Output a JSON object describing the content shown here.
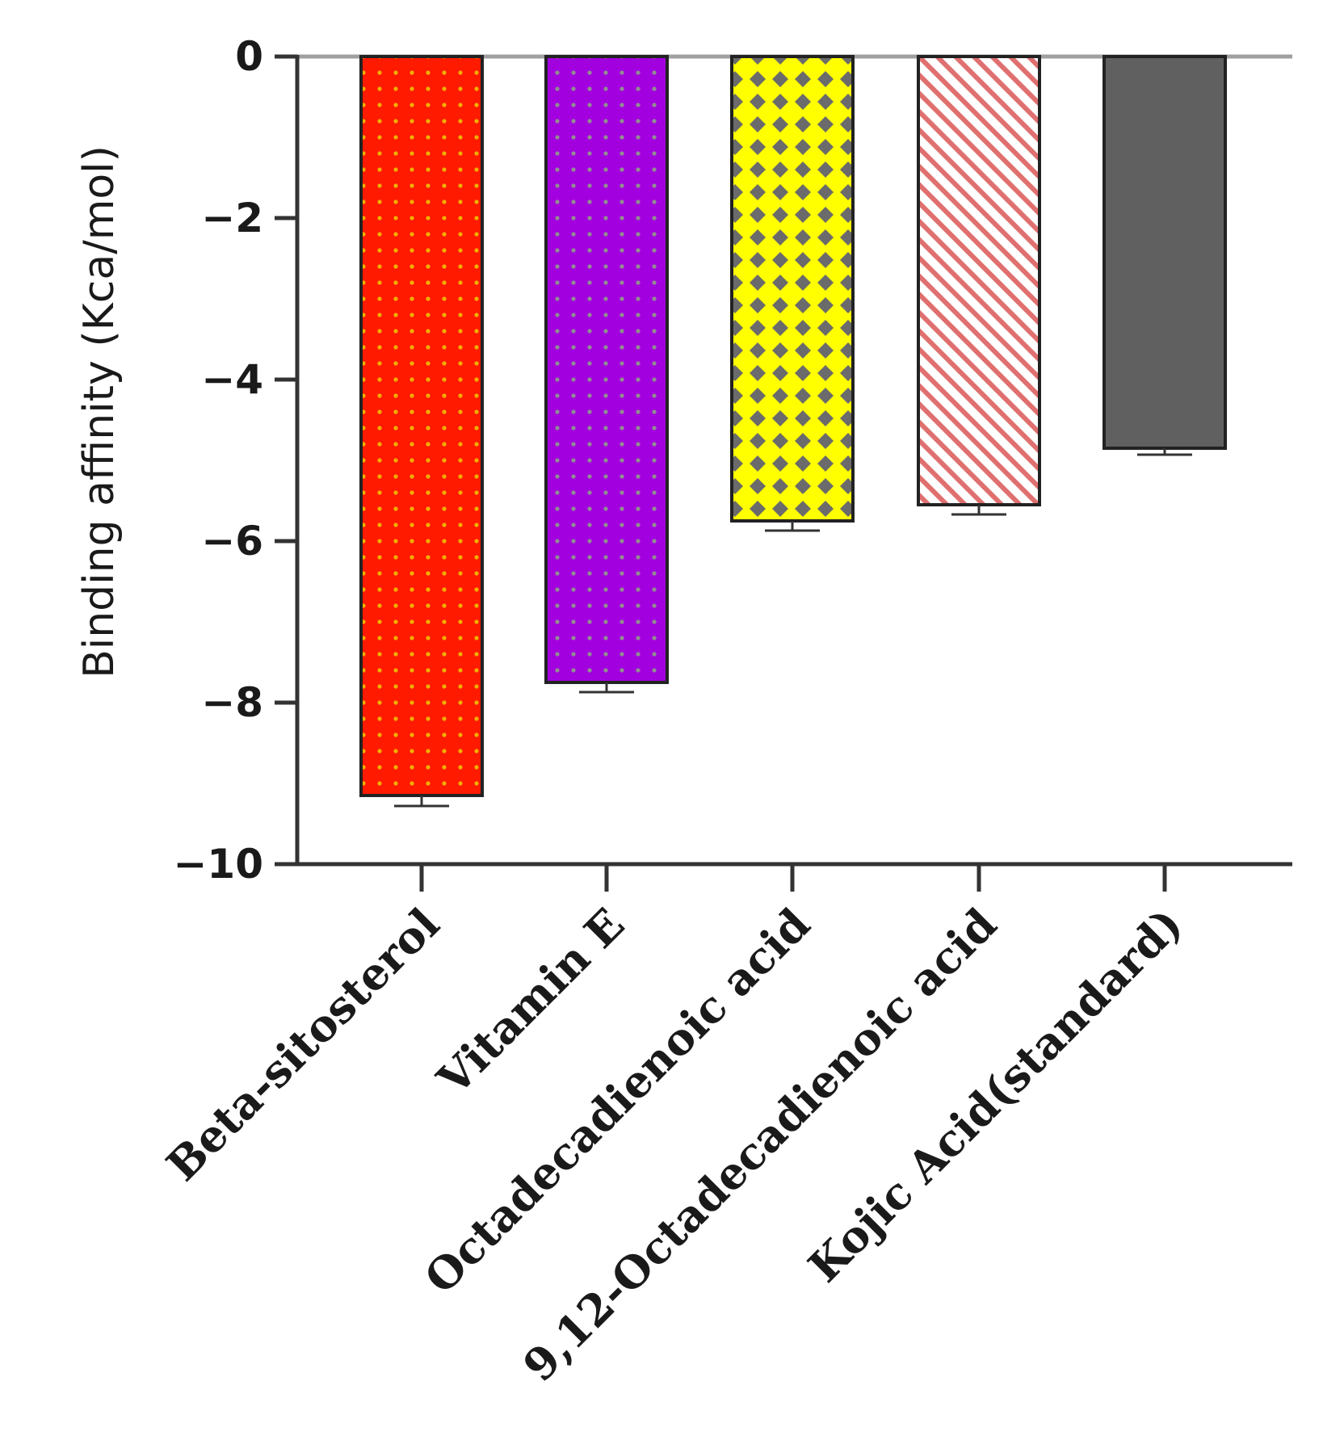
{
  "chart_data": {
    "type": "bar",
    "title": "",
    "xlabel": "",
    "ylabel": "Binding affinity (Kca/mol)",
    "ylim": [
      -10,
      0
    ],
    "yticks": [
      0,
      -2,
      -4,
      -6,
      -8,
      -10
    ],
    "ytick_labels": [
      "0",
      "−2",
      "−4",
      "−6",
      "−8",
      "−10"
    ],
    "categories": [
      "Beta-sitosterol",
      "Vitamin E",
      "Octadecadienoic acid",
      "9,12-Octadecadienoic acid",
      "Kojic Acid(standard)"
    ],
    "values": [
      -9.15,
      -7.75,
      -5.75,
      -5.55,
      -4.85
    ],
    "errors": [
      0.13,
      0.12,
      0.12,
      0.12,
      0.08
    ],
    "bar_styles": [
      {
        "pattern": "dots",
        "fill": "#ff1a00",
        "dot": "#f0b000"
      },
      {
        "pattern": "dots",
        "fill": "#a300e0",
        "dot": "#888888"
      },
      {
        "pattern": "diamonds",
        "fill": "#ffff00",
        "dot": "#6b6b6b"
      },
      {
        "pattern": "diagonal-stripes",
        "fill": "#ffffff",
        "dot": "#e07070"
      },
      {
        "pattern": "solid",
        "fill": "#606060",
        "dot": "#606060"
      }
    ],
    "grid": false,
    "legend": "none"
  }
}
